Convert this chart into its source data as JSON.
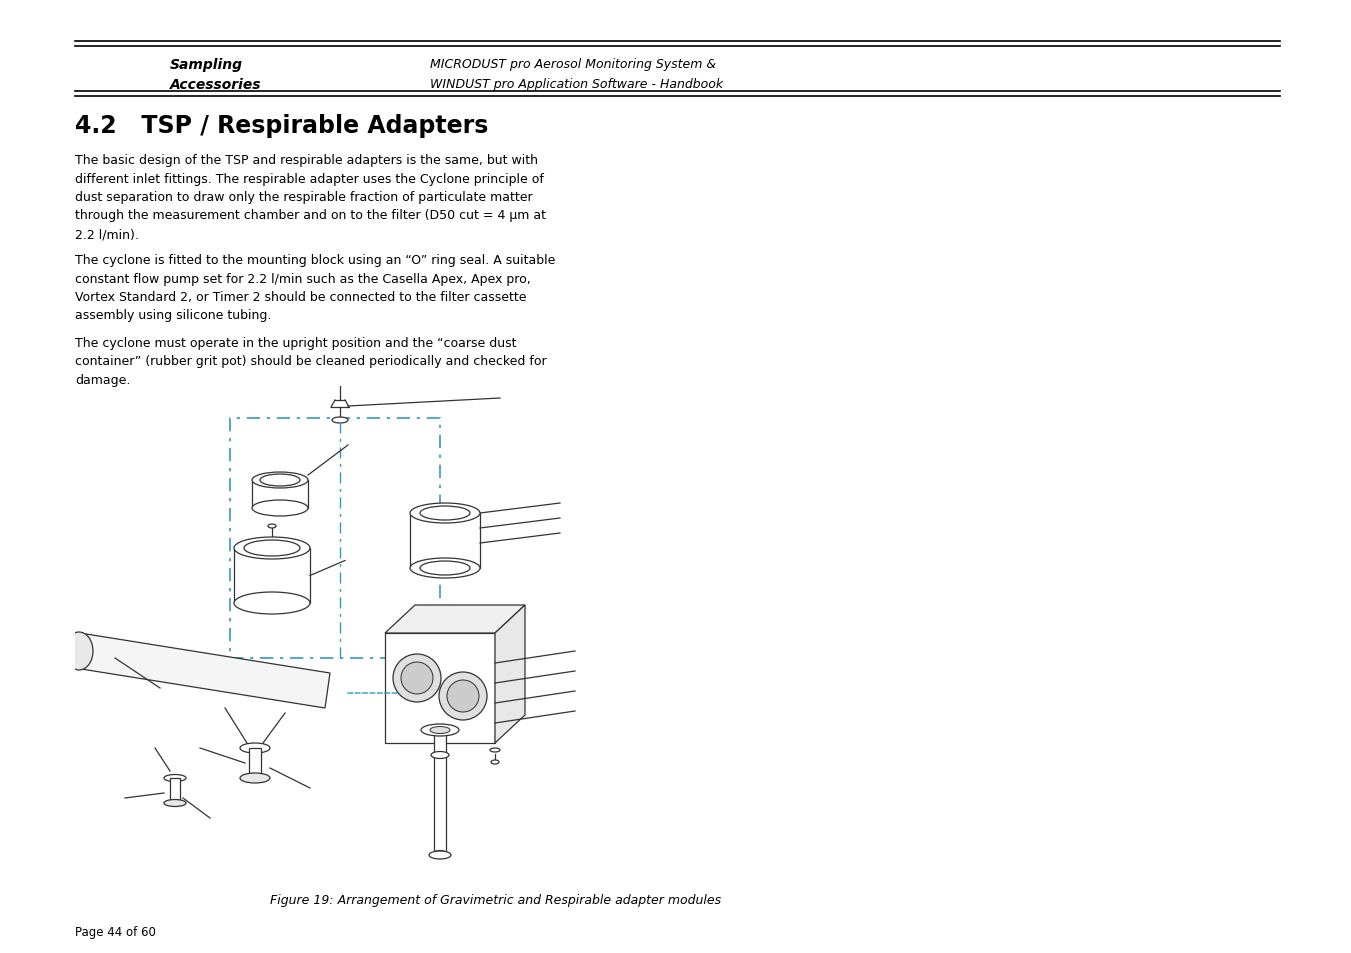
{
  "bg_color": "#ffffff",
  "header_left_line1": "Sampling",
  "header_left_line2": "Accessories",
  "header_right_line1": "MICRODUST pro Aerosol Monitoring System &",
  "header_right_line2": "WINDUST pro Application Software - Handbook",
  "section_title": "4.2   TSP / Respirable Adapters",
  "para1": "The basic design of the TSP and respirable adapters is the same, but with\ndifferent inlet fittings. The respirable adapter uses the Cyclone principle of\ndust separation to draw only the respirable fraction of particulate matter\nthrough the measurement chamber and on to the filter (D50 cut = 4 μm at\n2.2 l/min).",
  "para2": "The cyclone is fitted to the mounting block using an “O” ring seal. A suitable\nconstant flow pump set for 2.2 l/min such as the Casella Apex, Apex pro,\nVortex Standard 2, or Timer 2 should be connected to the filter cassette\nassembly using silicone tubing.",
  "para3": "The cyclone must operate in the upright position and the “coarse dust\ncontainer” (rubber grit pot) should be cleaned periodically and checked for\ndamage.",
  "figure_caption": "Figure 19: Arrangement of Gravimetric and Respirable adapter modules",
  "page_text": "Page 44 of 60",
  "text_color": "#000000",
  "blue_color": "#3399bb",
  "draw_color": "#333333"
}
